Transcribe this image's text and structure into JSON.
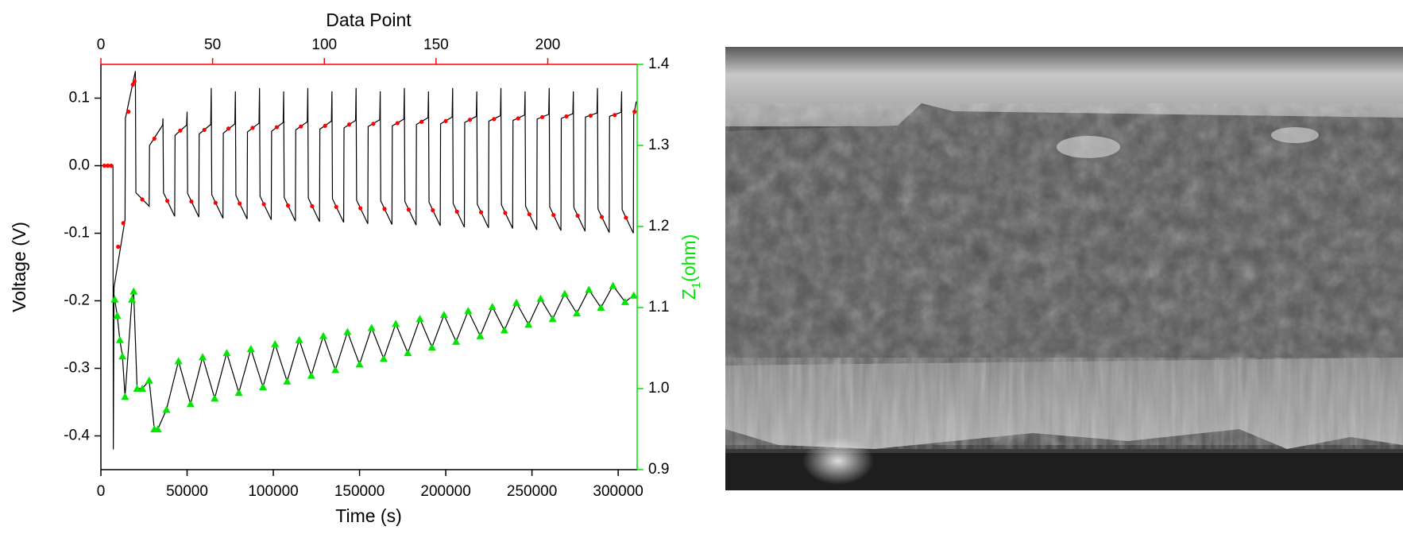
{
  "chart_data": {
    "type": "line",
    "xlabel": "Time (s)",
    "ylabel": "Voltage (V)",
    "x2label": "Data Point",
    "y2label": [
      "Z",
      "1",
      "(ohm)"
    ],
    "xlim": [
      0,
      311000
    ],
    "xticks": [
      0,
      50000,
      100000,
      150000,
      200000,
      250000,
      300000
    ],
    "x2lim": [
      0,
      240
    ],
    "x2ticks": [
      0,
      50,
      100,
      150,
      200
    ],
    "x2_color": "#ff0000",
    "ylim": [
      -0.45,
      0.15
    ],
    "yticks": [
      {
        "value": -0.4,
        "label": "-0.4"
      },
      -0.3,
      -0.2,
      -0.1,
      {
        "value": 0,
        "label": "0.0"
      },
      0.1
    ],
    "y2lim": [
      0.9,
      1.4
    ],
    "y2ticks": [
      0.9,
      {
        "value": 1,
        "label": "1.0"
      },
      1.1,
      1.2,
      1.3,
      1.4
    ],
    "y2_color": "#00e600",
    "series": [
      {
        "type": "line",
        "color": "#000000",
        "x": [
          0,
          7000,
          7200,
          7600,
          14000,
          14200,
          20000,
          20300,
          28000,
          28200,
          35800,
          36000,
          36300,
          42800,
          43000,
          49700,
          50000,
          50300,
          56800,
          57000,
          63700,
          64000,
          64300,
          70800,
          71000,
          77700,
          78000,
          78300,
          84800,
          85000,
          91700,
          92000,
          92300,
          98800,
          99000,
          105700,
          106000,
          106300,
          112800,
          113000,
          119700,
          120000,
          120300,
          126800,
          127000,
          133700,
          134000,
          134300,
          140800,
          141000,
          147700,
          148000,
          148300,
          154800,
          155000,
          161700,
          162000,
          162300,
          168800,
          169000,
          175700,
          176000,
          176300,
          182800,
          183000,
          189700,
          190000,
          190300,
          196800,
          197000,
          203700,
          204000,
          204300,
          210800,
          211000,
          217700,
          218000,
          218300,
          224800,
          225000,
          231700,
          232000,
          232300,
          238800,
          239000,
          245700,
          246000,
          246300,
          252800,
          253000,
          259700,
          260000,
          260300,
          266800,
          267000,
          273700,
          274000,
          274300,
          280800,
          281000,
          287700,
          288000,
          288300,
          294800,
          295000,
          301700,
          302000,
          302300,
          308800,
          309000,
          310500
        ],
        "values": [
          0,
          0,
          -0.42,
          -0.18,
          -0.08,
          0.07,
          0.14,
          -0.04,
          -0.06,
          0.03,
          0.06,
          0.07,
          -0.04,
          -0.075,
          0.045,
          0.06,
          0.08,
          -0.041,
          -0.076,
          0.047,
          0.061,
          0.115,
          -0.043,
          -0.078,
          0.048,
          0.062,
          0.11,
          -0.044,
          -0.079,
          0.05,
          0.063,
          0.115,
          -0.045,
          -0.08,
          0.051,
          0.064,
          0.11,
          -0.047,
          -0.082,
          0.053,
          0.065,
          0.115,
          -0.048,
          -0.083,
          0.054,
          0.066,
          0.11,
          -0.049,
          -0.084,
          0.056,
          0.067,
          0.115,
          -0.051,
          -0.086,
          0.058,
          0.068,
          0.11,
          -0.052,
          -0.087,
          0.059,
          0.069,
          0.115,
          -0.053,
          -0.088,
          0.061,
          0.071,
          0.11,
          -0.054,
          -0.089,
          0.062,
          0.072,
          0.115,
          -0.056,
          -0.091,
          0.064,
          0.073,
          0.11,
          -0.057,
          -0.092,
          0.066,
          0.074,
          0.115,
          -0.058,
          -0.093,
          0.067,
          0.075,
          0.11,
          -0.06,
          -0.095,
          0.069,
          0.076,
          0.115,
          -0.061,
          -0.096,
          0.07,
          0.077,
          0.11,
          -0.062,
          -0.097,
          0.072,
          0.078,
          0.115,
          -0.064,
          -0.099,
          0.073,
          0.079,
          0.11,
          -0.065,
          -0.1,
          0.075,
          0.095
        ]
      },
      {
        "type": "scatter",
        "marker": "circle",
        "color": "#ff0000",
        "x": [
          2000,
          4000,
          6000,
          10000,
          13000,
          16000,
          18500,
          19500,
          24000,
          31000,
          38500,
          46000,
          52500,
          60000,
          66500,
          74000,
          80500,
          88000,
          94500,
          102000,
          108500,
          116000,
          122500,
          130000,
          136500,
          144000,
          150500,
          158000,
          164500,
          172000,
          178500,
          186000,
          192500,
          200000,
          206500,
          214000,
          220500,
          228000,
          234500,
          242000,
          248500,
          256000,
          262500,
          270000,
          276500,
          284000,
          290500,
          298000,
          304500,
          309500
        ],
        "values": [
          0,
          0,
          0,
          -0.12,
          -0.085,
          0.08,
          0.12,
          0.125,
          -0.05,
          0.04,
          -0.052,
          0.052,
          -0.053,
          0.053,
          -0.055,
          0.055,
          -0.056,
          0.056,
          -0.057,
          0.057,
          -0.059,
          0.058,
          -0.06,
          0.059,
          -0.061,
          0.061,
          -0.063,
          0.062,
          -0.064,
          0.063,
          -0.065,
          0.065,
          -0.066,
          0.066,
          -0.068,
          0.068,
          -0.069,
          0.069,
          -0.07,
          0.07,
          -0.072,
          0.072,
          -0.073,
          0.073,
          -0.074,
          0.074,
          -0.076,
          0.075,
          -0.077,
          0.08
        ]
      },
      {
        "type": "line",
        "marker": "triangle",
        "axis": "y2",
        "color": "#00e600",
        "line_color": "#000000",
        "x": [
          8000,
          9500,
          11000,
          12500,
          14000,
          18000,
          19000,
          21000,
          24000,
          28000,
          31000,
          33000,
          38000,
          45000,
          52000,
          59000,
          66000,
          73000,
          80000,
          87000,
          94000,
          101000,
          108000,
          115000,
          122000,
          129000,
          136000,
          143000,
          150000,
          157000,
          164000,
          171000,
          178000,
          185000,
          192000,
          199000,
          206000,
          213000,
          220000,
          227000,
          234000,
          241000,
          248000,
          255000,
          262000,
          269000,
          276000,
          283000,
          290000,
          297000,
          304000,
          309000
        ],
        "values": [
          1.11,
          1.09,
          1.06,
          1.04,
          0.99,
          1.11,
          1.12,
          1.0,
          1.0,
          1.01,
          0.95,
          0.95,
          0.974,
          1.034,
          0.981,
          1.039,
          0.988,
          1.044,
          0.995,
          1.049,
          1.002,
          1.055,
          1.009,
          1.06,
          1.016,
          1.065,
          1.023,
          1.07,
          1.03,
          1.075,
          1.037,
          1.08,
          1.044,
          1.086,
          1.051,
          1.091,
          1.058,
          1.096,
          1.065,
          1.101,
          1.072,
          1.106,
          1.079,
          1.111,
          1.086,
          1.117,
          1.093,
          1.122,
          1.1,
          1.127,
          1.107,
          1.115
        ]
      }
    ]
  }
}
